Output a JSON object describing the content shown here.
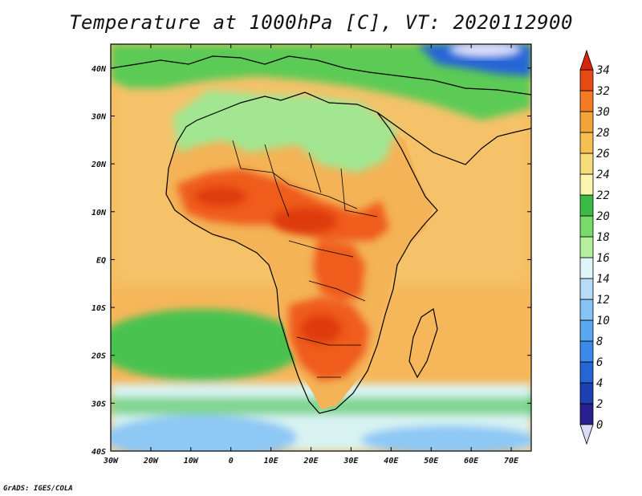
{
  "title": "Temperature at 1000hPa [C], VT: 2020112900",
  "credit": "GrADS: IGES/COLA",
  "map": {
    "lon_range": [
      -30,
      75
    ],
    "lat_range": [
      -40,
      45
    ],
    "lon_ticks": [
      {
        "value": -30,
        "label": "30W"
      },
      {
        "value": -20,
        "label": "20W"
      },
      {
        "value": -10,
        "label": "10W"
      },
      {
        "value": 0,
        "label": "0"
      },
      {
        "value": 10,
        "label": "10E"
      },
      {
        "value": 20,
        "label": "20E"
      },
      {
        "value": 30,
        "label": "30E"
      },
      {
        "value": 40,
        "label": "40E"
      },
      {
        "value": 50,
        "label": "50E"
      },
      {
        "value": 60,
        "label": "60E"
      },
      {
        "value": 70,
        "label": "70E"
      }
    ],
    "lat_ticks": [
      {
        "value": 40,
        "label": "40N"
      },
      {
        "value": 30,
        "label": "30N"
      },
      {
        "value": 20,
        "label": "20N"
      },
      {
        "value": 10,
        "label": "10N"
      },
      {
        "value": 0,
        "label": "EQ"
      },
      {
        "value": -10,
        "label": "10S"
      },
      {
        "value": -20,
        "label": "20S"
      },
      {
        "value": -30,
        "label": "30S"
      },
      {
        "value": -40,
        "label": "40S"
      }
    ]
  },
  "colorbar": {
    "levels": [
      "0",
      "2",
      "4",
      "6",
      "8",
      "10",
      "12",
      "14",
      "16",
      "18",
      "20",
      "22",
      "24",
      "26",
      "28",
      "30",
      "32",
      "34"
    ],
    "colors": [
      "#2a1f8f",
      "#1c3fb3",
      "#2565d6",
      "#3b8aeb",
      "#5aa8f2",
      "#86c3f7",
      "#b6dcfa",
      "#e0f5fa",
      "#b4ee9e",
      "#78da6b",
      "#3cbb44",
      "#fbf5b0",
      "#f6dc7a",
      "#f5bf52",
      "#f4a33a",
      "#f47b22",
      "#e84a14"
    ],
    "under_color": "#dcdcf8",
    "over_color": "#d5260d"
  },
  "field_colors": {
    "ocean_south": "#f6b65a",
    "ocean_north": "#f5c269",
    "africa_land": "#f4b357",
    "sahara": "#a2e691",
    "europe": "#5ccb55",
    "hot": "#ef5b1a",
    "hottest": "#de3a10",
    "cold_high": "#2565d6",
    "south_green": "#48c250",
    "south_light": "#d8f3f2",
    "south_blue": "#8ec8f5",
    "coast_line": "#000000"
  }
}
